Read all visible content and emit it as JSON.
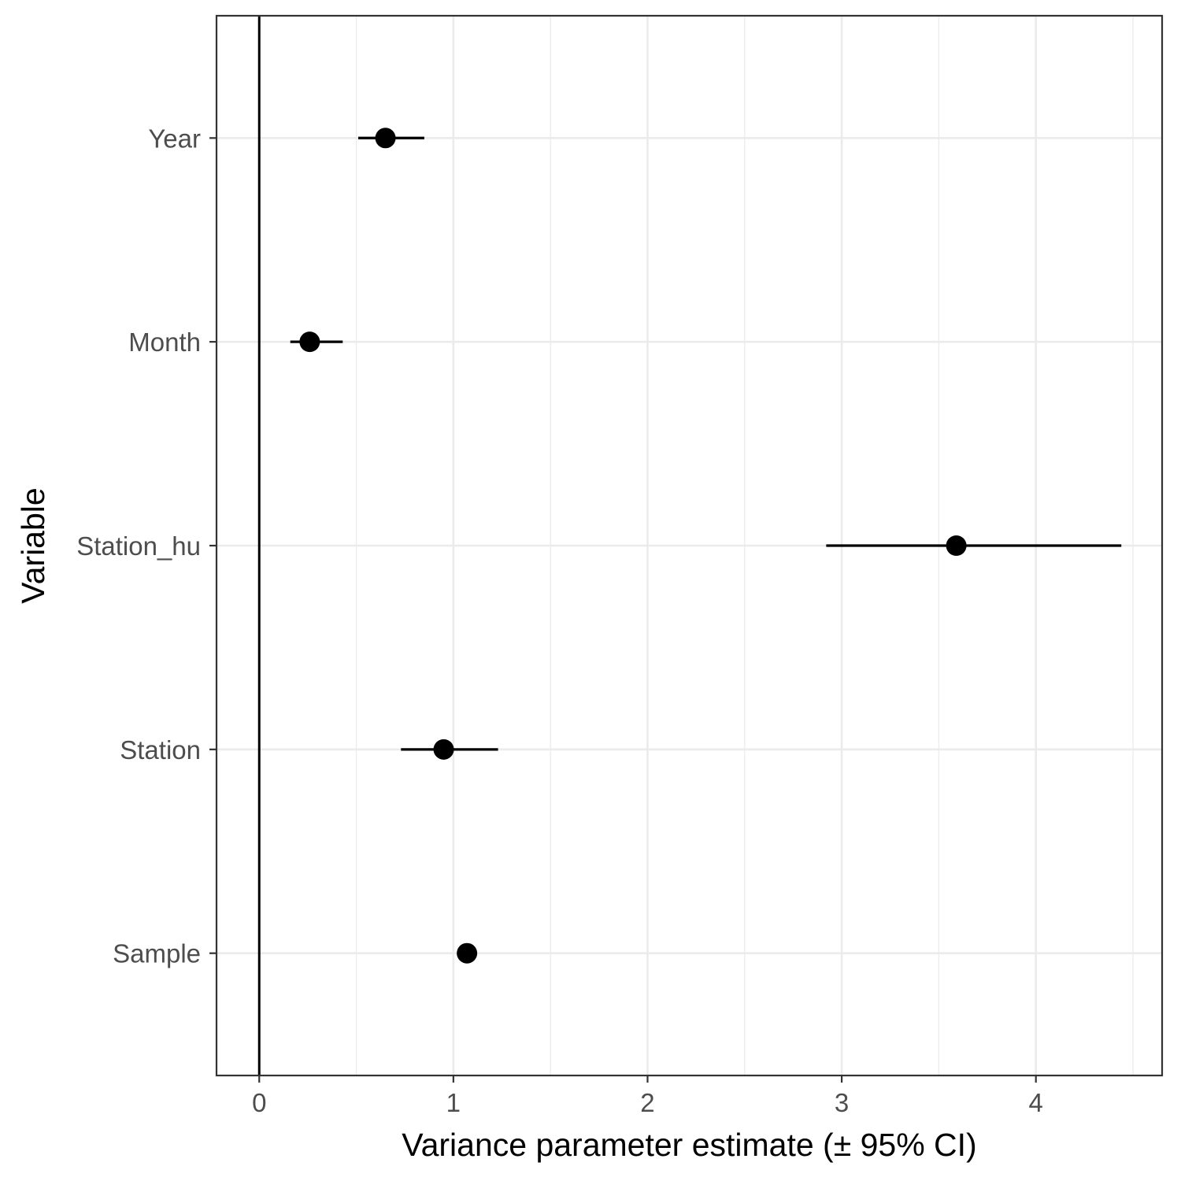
{
  "chart_data": {
    "type": "scatter",
    "subtype": "point-range",
    "title": "",
    "xlabel": "Variance parameter estimate (± 95% CI)",
    "ylabel": "Variable",
    "xlim": [
      -0.22,
      4.65
    ],
    "x_ticks": [
      0,
      1,
      2,
      3,
      4
    ],
    "x_tick_labels": [
      "0",
      "1",
      "2",
      "3",
      "4"
    ],
    "grid": true,
    "reference_line_x": 0,
    "categories": [
      "Year",
      "Month",
      "Station_hu",
      "Station",
      "Sample"
    ],
    "estimates": [
      0.65,
      0.26,
      3.59,
      0.95,
      1.07
    ],
    "ci_low": [
      0.51,
      0.16,
      2.92,
      0.73,
      null
    ],
    "ci_high": [
      0.85,
      0.43,
      4.44,
      1.23,
      null
    ],
    "colors": {
      "point": "#000000",
      "grid": "#ebebeb",
      "panel_border": "#333333",
      "tick_text": "#4d4d4d"
    }
  }
}
